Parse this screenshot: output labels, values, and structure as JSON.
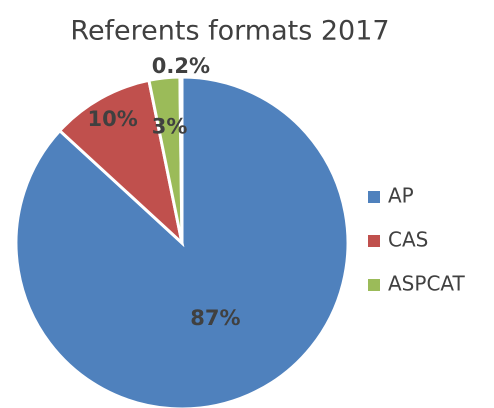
{
  "chart_data": {
    "type": "pie",
    "title": "Referents formats 2017",
    "categories": [
      "AP",
      "CAS",
      "ASPCAT",
      null
    ],
    "values": [
      87,
      10,
      3,
      0.2
    ],
    "value_labels": [
      "87%",
      "10%",
      "3%",
      "0.2%"
    ],
    "colors": [
      "#4f81bd",
      "#c0504d",
      "#9bbb59",
      "#8064a2"
    ],
    "legend": "right"
  }
}
